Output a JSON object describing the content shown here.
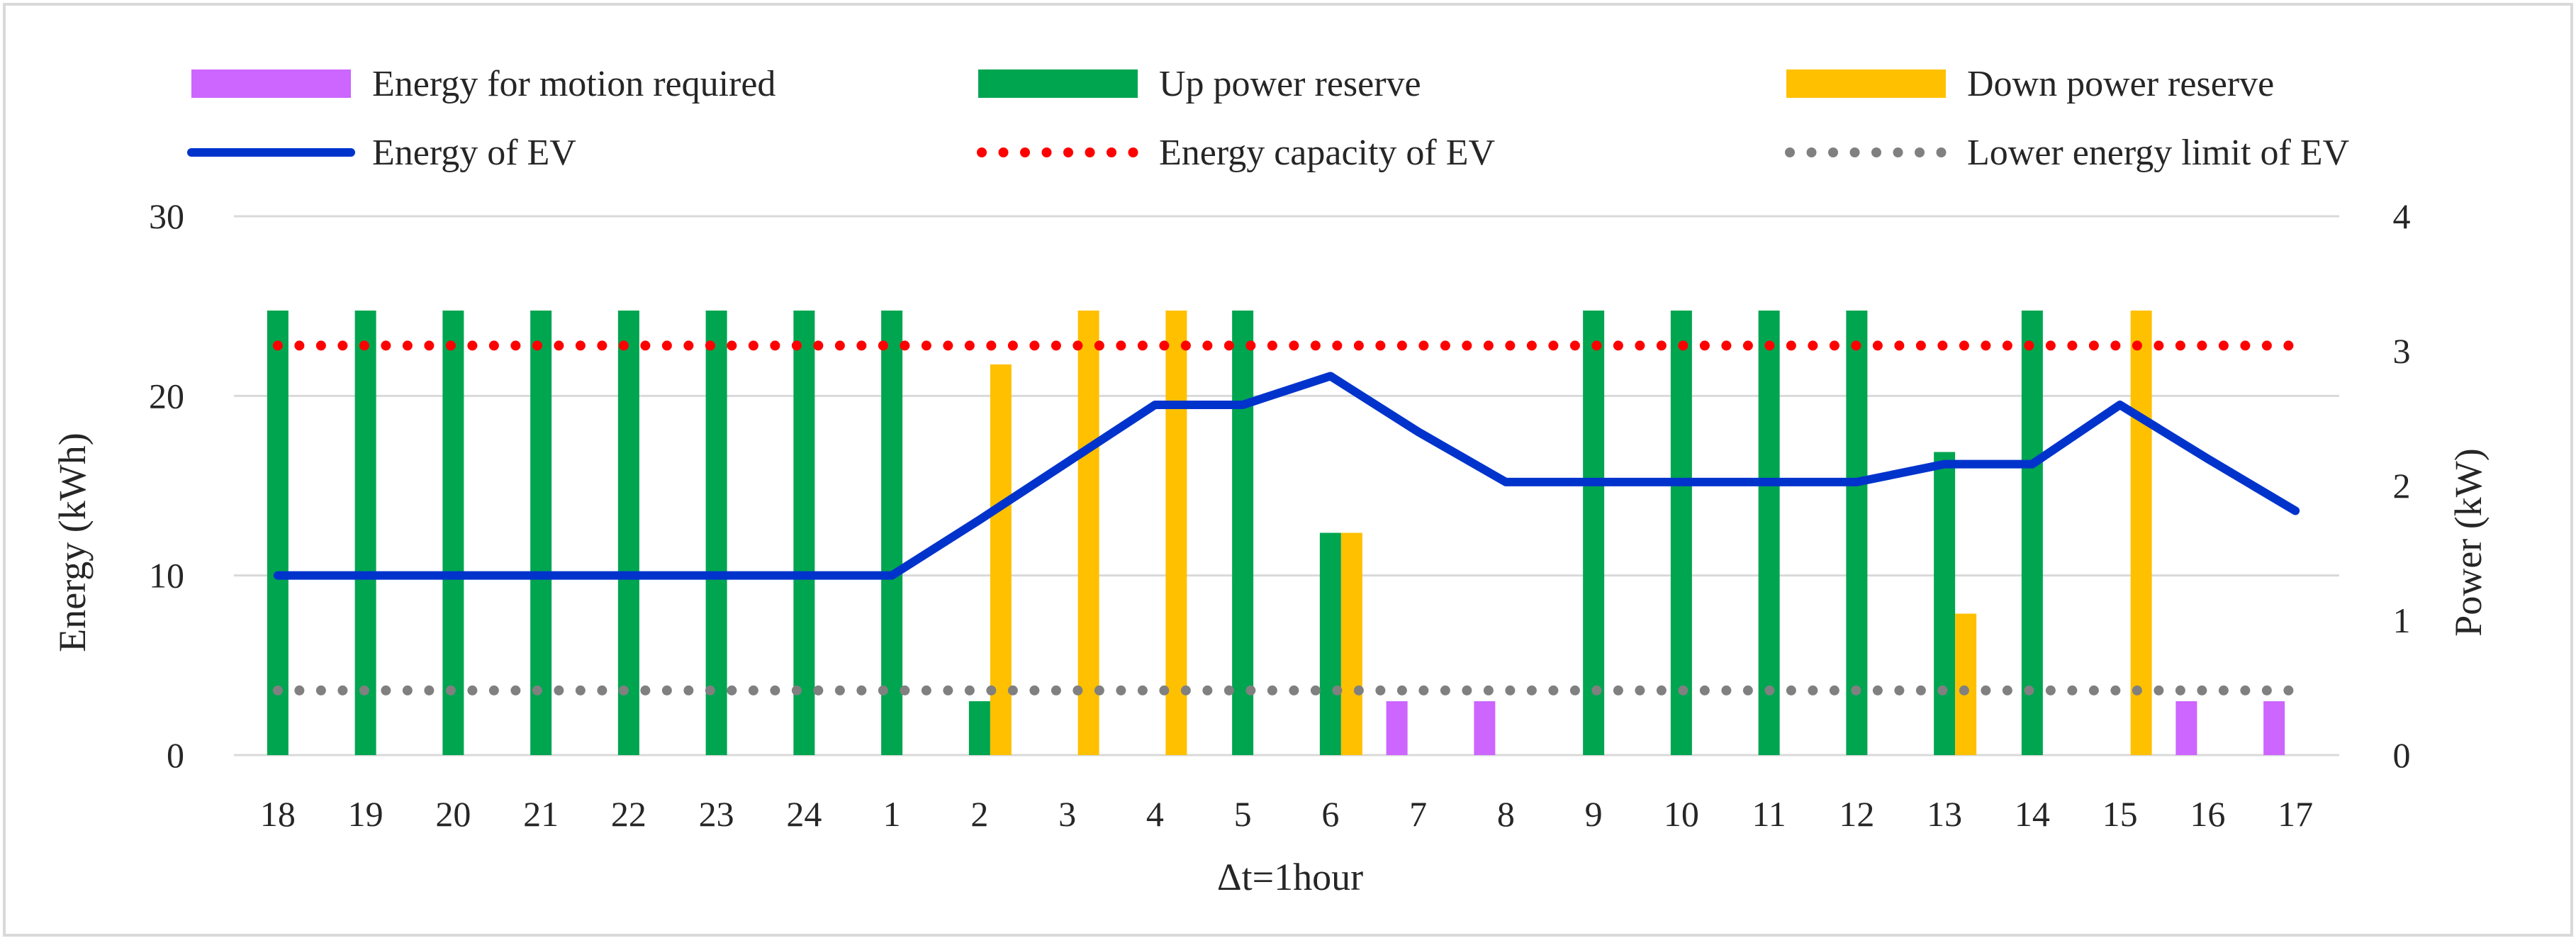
{
  "chart_data": {
    "type": "bar-line-combo",
    "xlabel": "Δt=1hour",
    "ylabel_left": "Energy (kWh)",
    "ylabel_right": "Power (kW)",
    "ylim_left": [
      0,
      30
    ],
    "ylim_right": [
      0,
      4
    ],
    "yticks_left": [
      0,
      10,
      20,
      30
    ],
    "yticks_right": [
      0,
      1,
      2,
      3,
      4
    ],
    "grid": true,
    "legend_position": "top",
    "categories": [
      "18",
      "19",
      "20",
      "21",
      "22",
      "23",
      "24",
      "1",
      "2",
      "3",
      "4",
      "5",
      "6",
      "7",
      "8",
      "9",
      "10",
      "11",
      "12",
      "13",
      "14",
      "15",
      "16",
      "17"
    ],
    "bar_series": [
      {
        "name": "Energy for motion required",
        "color": "#cc66ff",
        "axis": "right",
        "values": [
          0,
          0,
          0,
          0,
          0,
          0,
          0,
          0,
          0,
          0,
          0,
          0,
          0,
          0.4,
          0.4,
          0,
          0,
          0,
          0,
          0,
          0,
          0,
          0.4,
          0.4
        ]
      },
      {
        "name": "Up power reserve",
        "color": "#00a550",
        "axis": "right",
        "values": [
          3.3,
          3.3,
          3.3,
          3.3,
          3.3,
          3.3,
          3.3,
          3.3,
          0.4,
          0,
          0,
          3.3,
          1.65,
          0,
          0,
          3.3,
          3.3,
          3.3,
          3.3,
          2.25,
          3.3,
          0,
          0,
          0
        ]
      },
      {
        "name": "Down power reserve",
        "color": "#ffc000",
        "axis": "right",
        "values": [
          0,
          0,
          0,
          0,
          0,
          0,
          0,
          0,
          2.9,
          3.3,
          3.3,
          0,
          1.65,
          0,
          0,
          0,
          0,
          0,
          0,
          1.05,
          0,
          3.3,
          0,
          0
        ]
      }
    ],
    "line_series": [
      {
        "name": "Energy of EV",
        "color": "#0033cc",
        "style": "solid",
        "axis": "left",
        "values": [
          10,
          10,
          10,
          10,
          10,
          10,
          10,
          10,
          13.1,
          16.3,
          19.5,
          19.5,
          21.1,
          18,
          15.2,
          15.2,
          15.2,
          15.2,
          15.2,
          16.2,
          16.2,
          19.5,
          16.5,
          13.6
        ]
      },
      {
        "name": "Energy capacity of EV",
        "color": "#ff0000",
        "style": "dotted",
        "axis": "left",
        "values": [
          22.8,
          22.8,
          22.8,
          22.8,
          22.8,
          22.8,
          22.8,
          22.8,
          22.8,
          22.8,
          22.8,
          22.8,
          22.8,
          22.8,
          22.8,
          22.8,
          22.8,
          22.8,
          22.8,
          22.8,
          22.8,
          22.8,
          22.8,
          22.8
        ]
      },
      {
        "name": "Lower energy limit of EV",
        "color": "#808080",
        "style": "dotted",
        "axis": "left",
        "values": [
          3.6,
          3.6,
          3.6,
          3.6,
          3.6,
          3.6,
          3.6,
          3.6,
          3.6,
          3.6,
          3.6,
          3.6,
          3.6,
          3.6,
          3.6,
          3.6,
          3.6,
          3.6,
          3.6,
          3.6,
          3.6,
          3.6,
          3.6,
          3.6
        ]
      }
    ],
    "legend_rows": [
      [
        "Energy for motion required",
        "Up power reserve",
        "Down power reserve"
      ],
      [
        "Energy of EV",
        "Energy capacity of EV",
        "Lower energy limit of EV"
      ]
    ]
  }
}
